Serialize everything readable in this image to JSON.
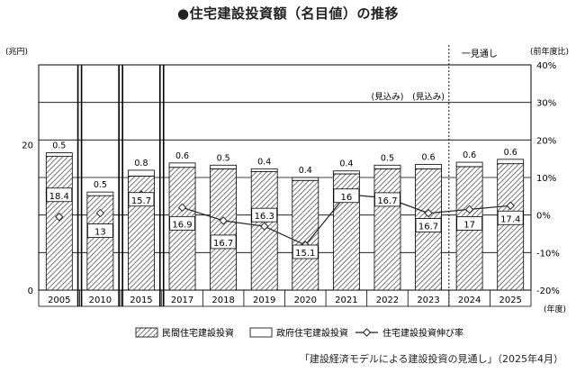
{
  "title": "●住宅建設投資額（名目値）の推移",
  "source": "「建設経済モデルによる建設投資の見通し」（2025年4月）",
  "colors": {
    "bar_fill_hatch": "#555555",
    "gov_fill": "#ffffff",
    "line": "#222222",
    "grid": "#000000"
  },
  "chart_data": {
    "type": "bar",
    "categories": [
      "2005",
      "2010",
      "2015",
      "2017",
      "2018",
      "2019",
      "2020",
      "2021",
      "2022",
      "2023",
      "2024",
      "2025"
    ],
    "series": [
      {
        "name": "民間住宅建設投資",
        "type": "bar",
        "stack": "total",
        "values": [
          18.4,
          13.0,
          15.7,
          16.9,
          16.7,
          16.3,
          15.1,
          16.0,
          16.7,
          16.7,
          17.0,
          17.4
        ]
      },
      {
        "name": "政府住宅建設投資",
        "type": "bar",
        "stack": "total",
        "values": [
          0.5,
          0.5,
          0.8,
          0.6,
          0.5,
          0.4,
          0.4,
          0.4,
          0.5,
          0.6,
          0.6,
          0.6
        ]
      },
      {
        "name": "住宅建設投資伸び率",
        "type": "line",
        "axis": "right",
        "values": [
          -0.5,
          0.5,
          5.5,
          2.0,
          -1.5,
          -3.0,
          -8.0,
          5.5,
          4.5,
          0.5,
          1.5,
          2.5
        ]
      }
    ],
    "y_left": {
      "label": "(兆円)",
      "ticks": [
        "0",
        "20"
      ]
    },
    "y_right": {
      "label": "(前年度比)",
      "ticks": [
        "40%",
        "30%",
        "20%",
        "10%",
        "0%",
        "-10%",
        "-20%"
      ],
      "range": [
        -20,
        40
      ]
    },
    "x_unit": "(年度)",
    "forecast_label": "(見込み)",
    "forecast_categories": [
      "2022",
      "2023"
    ],
    "outlook_label": "一見通し"
  }
}
